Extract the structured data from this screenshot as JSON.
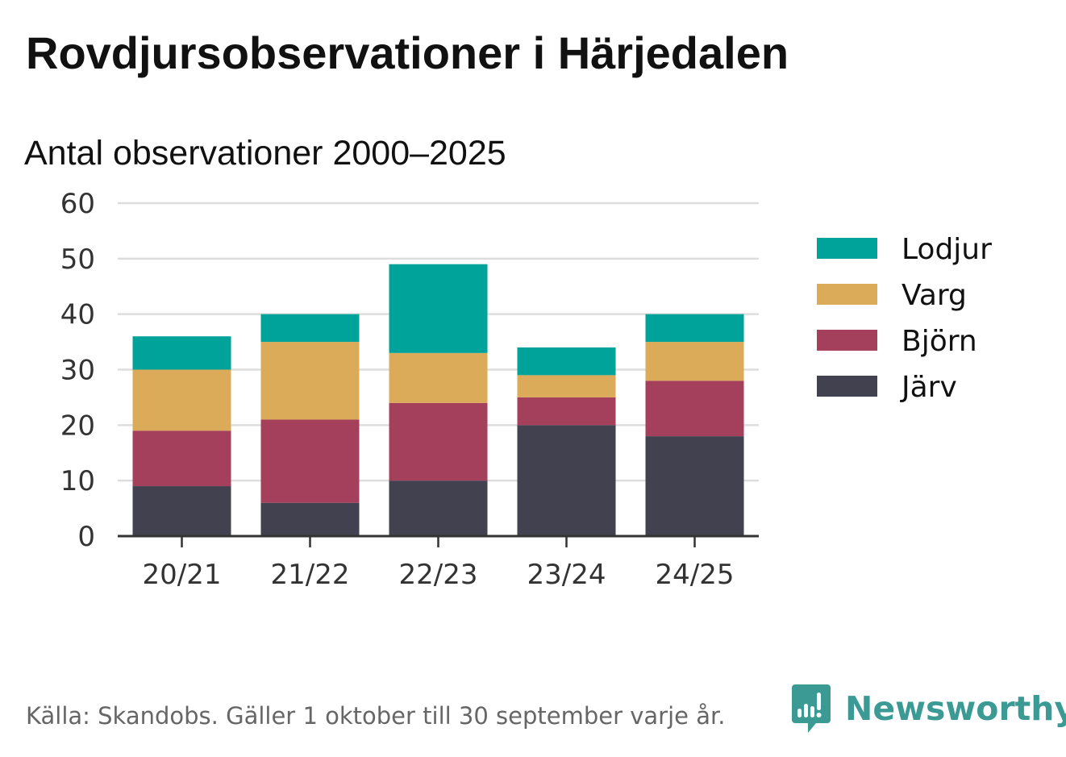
{
  "title": "Rovdjursobservationer i Härjedalen",
  "subtitle": "Antal observationer 2000–2025",
  "footer": {
    "source": "Källa: Skandobs. Gäller 1 oktober till 30 september varje år."
  },
  "brand": {
    "name": "Newsworthy",
    "color": "#3b9b94"
  },
  "chart_data": {
    "type": "bar",
    "stacked": true,
    "title": "Rovdjursobservationer i Härjedalen",
    "subtitle": "Antal observationer 2000–2025",
    "xlabel": "",
    "ylabel": "",
    "categories": [
      "20/21",
      "21/22",
      "22/23",
      "23/24",
      "24/25"
    ],
    "ylim": [
      0,
      60
    ],
    "yticks": [
      0,
      10,
      20,
      30,
      40,
      50,
      60
    ],
    "grid": true,
    "legend_position": "right",
    "series": [
      {
        "name": "Järv",
        "color": "#42414f",
        "values": [
          9,
          6,
          10,
          20,
          18
        ]
      },
      {
        "name": "Björn",
        "color": "#a5405c",
        "values": [
          10,
          15,
          14,
          5,
          10
        ]
      },
      {
        "name": "Varg",
        "color": "#dbab5a",
        "values": [
          11,
          14,
          9,
          4,
          7
        ]
      },
      {
        "name": "Lodjur",
        "color": "#00a39a",
        "values": [
          6,
          5,
          16,
          5,
          5
        ]
      }
    ],
    "legend_order": [
      "Lodjur",
      "Varg",
      "Björn",
      "Järv"
    ]
  }
}
